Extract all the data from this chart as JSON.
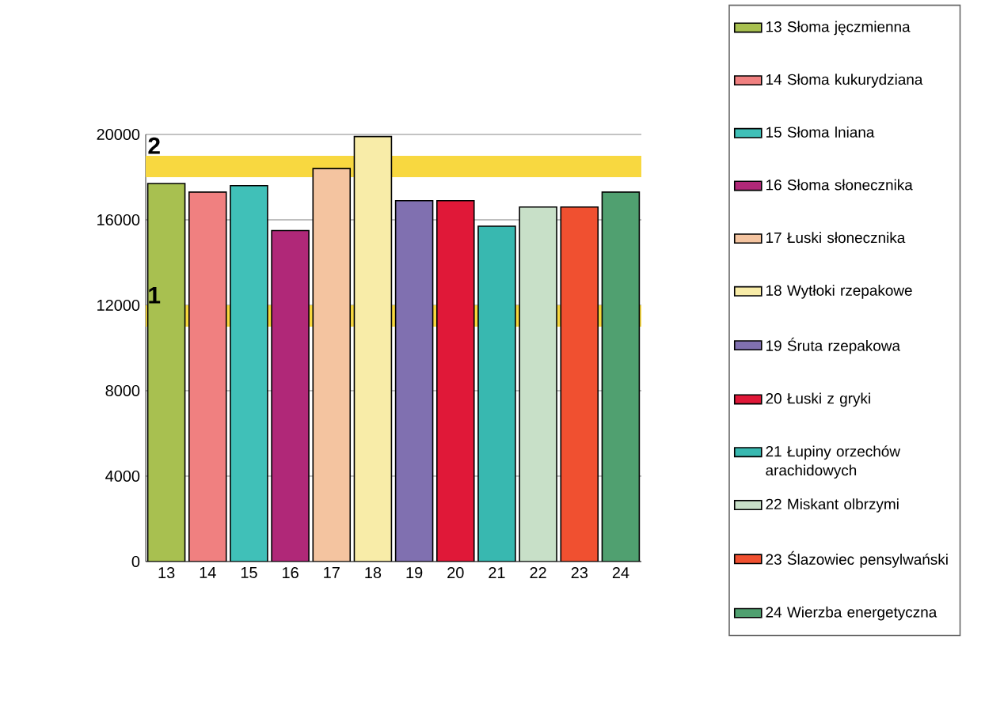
{
  "chart_data": {
    "type": "bar",
    "categories": [
      "13",
      "14",
      "15",
      "16",
      "17",
      "18",
      "19",
      "20",
      "21",
      "22",
      "23",
      "24"
    ],
    "series": [
      {
        "name": "13 Słoma jęczmienna",
        "color": "#a8c050",
        "values": [
          17700,
          null,
          null,
          null,
          null,
          null,
          null,
          null,
          null,
          null,
          null,
          null
        ]
      },
      {
        "name": "14 Słoma kukurydziana",
        "color": "#f08080",
        "values": [
          null,
          17300,
          null,
          null,
          null,
          null,
          null,
          null,
          null,
          null,
          null,
          null
        ]
      },
      {
        "name": "15 Słoma lniana",
        "color": "#40c0b8",
        "values": [
          null,
          null,
          17600,
          null,
          null,
          null,
          null,
          null,
          null,
          null,
          null,
          null
        ]
      },
      {
        "name": "16 Słoma słonecznika",
        "color": "#b02878",
        "values": [
          null,
          null,
          null,
          15500,
          null,
          null,
          null,
          null,
          null,
          null,
          null,
          null
        ]
      },
      {
        "name": "17 Łuski słonecznika",
        "color": "#f4c4a0",
        "values": [
          null,
          null,
          null,
          null,
          18400,
          null,
          null,
          null,
          null,
          null,
          null,
          null
        ]
      },
      {
        "name": "18 Wytłoki rzepakowe",
        "color": "#f8eca8",
        "values": [
          null,
          null,
          null,
          null,
          null,
          19900,
          null,
          null,
          null,
          null,
          null,
          null
        ]
      },
      {
        "name": "19 Śruta rzepakowa",
        "color": "#8070b0",
        "values": [
          null,
          null,
          null,
          null,
          null,
          null,
          16900,
          null,
          null,
          null,
          null,
          null
        ]
      },
      {
        "name": "20 Łuski z gryki",
        "color": "#e01838",
        "values": [
          null,
          null,
          null,
          null,
          null,
          null,
          null,
          16900,
          null,
          null,
          null,
          null
        ]
      },
      {
        "name": "21 Łupiny orzechów arachidowych",
        "color": "#38b8b0",
        "values": [
          null,
          null,
          null,
          null,
          null,
          null,
          null,
          null,
          15700,
          null,
          null,
          null
        ]
      },
      {
        "name": "22 Miskant olbrzymi",
        "color": "#c8e0c8",
        "values": [
          null,
          null,
          null,
          null,
          null,
          null,
          null,
          null,
          null,
          16600,
          null,
          null
        ]
      },
      {
        "name": "23 Ślazowiec pensylwański",
        "color": "#f05030",
        "values": [
          null,
          null,
          null,
          null,
          null,
          null,
          null,
          null,
          null,
          null,
          16600,
          null
        ]
      },
      {
        "name": "24 Wierzba energetyczna",
        "color": "#50a070",
        "values": [
          null,
          null,
          null,
          null,
          null,
          null,
          null,
          null,
          null,
          null,
          null,
          17300
        ]
      }
    ],
    "ylim": [
      0,
      20000
    ],
    "yticks": [
      0,
      4000,
      8000,
      12000,
      16000,
      20000
    ],
    "grid": "y",
    "legend": "right",
    "bands": [
      {
        "axis": "y",
        "from": 11000,
        "to": 12000,
        "label": "1",
        "color": "#f8d840"
      },
      {
        "axis": "y",
        "from": 18000,
        "to": 19000,
        "label": "2",
        "color": "#f8d840"
      }
    ]
  }
}
